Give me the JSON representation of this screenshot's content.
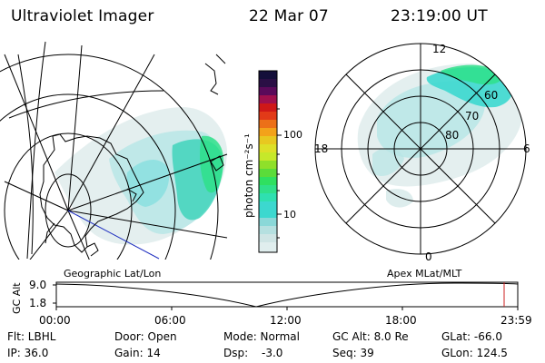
{
  "header": {
    "title": "Ultraviolet Imager",
    "date": "22 Mar 07",
    "time": "23:19:00 UT"
  },
  "left_panel": {
    "caption": "Geographic Lat/Lon"
  },
  "right_panel": {
    "caption": "Apex MLat/MLT",
    "mlt_labels": [
      "12",
      "18",
      "6",
      "0"
    ],
    "mlat_labels": [
      "60",
      "70",
      "80"
    ]
  },
  "colorbar": {
    "unit_label": "photon cm⁻²s⁻¹",
    "tick_labels": [
      "100",
      "10"
    ],
    "colors": [
      "#cfe5e5",
      "#3cd8cf",
      "#2fe08a",
      "#8fe02a",
      "#dde028",
      "#f3a21a",
      "#e85a18",
      "#cf1818",
      "#a0104d",
      "#5a0a5a",
      "#140f3a"
    ]
  },
  "altitude_plot": {
    "ylabel": "GC Alt",
    "y_ticks": [
      "9.0",
      "1.8"
    ],
    "x_ticks": [
      "00:00",
      "06:00",
      "12:00",
      "18:00",
      "23:59"
    ],
    "marker_color": "#cc2020"
  },
  "info": {
    "filter": "Flt: LBHL",
    "door": "Door: Open",
    "mode": "Mode: Normal",
    "gc_alt": "GC Alt: 8.0 Re",
    "glat": "GLat: -66.0",
    "ip": "IP: 36.0",
    "gain": "Gain: 14",
    "dsp_label": "Dsp:",
    "dsp_value": "-3.0",
    "seq": "Seq: 39",
    "glon": "GLon: 124.5"
  }
}
